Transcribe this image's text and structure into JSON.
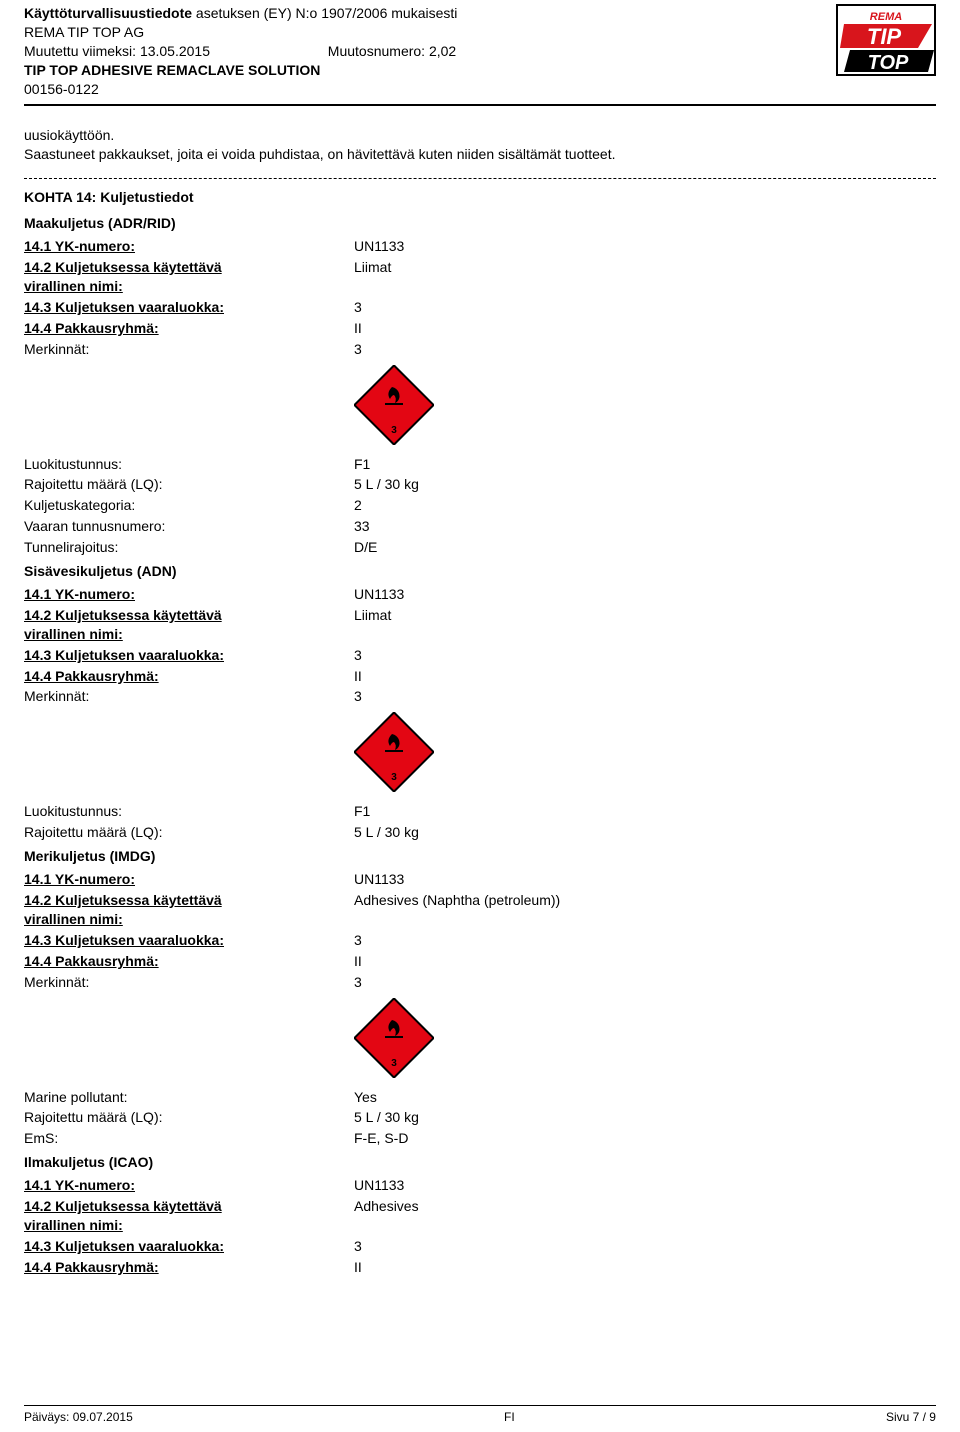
{
  "header": {
    "title_prefix_b": "Käyttöturvallisuustiedote",
    "title_suffix": " asetuksen (EY) N:o 1907/2006 mukaisesti",
    "company": "REMA TIP TOP AG",
    "modified_label": "Muutettu viimeksi: ",
    "modified_date": "13.05.2015",
    "revision_label": "Muutosnumero: ",
    "revision_no": "2,02",
    "product": "TIP TOP ADHESIVE REMACLAVE SOLUTION",
    "code": "00156-0122"
  },
  "intro": {
    "line1": "uusiokäyttöön.",
    "line2": "Saastuneet pakkaukset, joita ei voida puhdistaa, on hävitettävä kuten niiden sisältämät tuotteet."
  },
  "section14": {
    "title": "KOHTA 14: Kuljetustiedot",
    "adr": {
      "heading": "Maakuljetus (ADR/RID)",
      "items": [
        {
          "l": "14.1 YK-numero:",
          "v": "UN1133",
          "u": true,
          "b": true
        },
        {
          "l": "14.2 Kuljetuksessa käytettävä virallinen nimi:",
          "v": "Liimat",
          "u": true,
          "b": true,
          "twoline": true
        },
        {
          "l": "14.3 Kuljetuksen vaaraluokka:",
          "v": "3",
          "u": true,
          "b": true
        },
        {
          "l": "14.4 Pakkausryhmä:",
          "v": "II",
          "u": true,
          "b": true
        },
        {
          "l": "Merkinnät:",
          "v": "3"
        }
      ],
      "after": [
        {
          "l": "Luokitustunnus:",
          "v": "F1"
        },
        {
          "l": "Rajoitettu määrä (LQ):",
          "v": "5 L / 30 kg"
        },
        {
          "l": "Kuljetuskategoria:",
          "v": "2"
        },
        {
          "l": "Vaaran tunnusnumero:",
          "v": "33"
        },
        {
          "l": "Tunnelirajoitus:",
          "v": "D/E"
        }
      ]
    },
    "adn": {
      "heading": "Sisävesikuljetus (ADN)",
      "items": [
        {
          "l": "14.1 YK-numero:",
          "v": "UN1133",
          "u": true,
          "b": true
        },
        {
          "l": "14.2 Kuljetuksessa käytettävä virallinen nimi:",
          "v": "Liimat",
          "u": true,
          "b": true,
          "twoline": true
        },
        {
          "l": "14.3 Kuljetuksen vaaraluokka:",
          "v": "3",
          "u": true,
          "b": true
        },
        {
          "l": "14.4 Pakkausryhmä:",
          "v": "II",
          "u": true,
          "b": true
        },
        {
          "l": "Merkinnät:",
          "v": "3"
        }
      ],
      "after": [
        {
          "l": "Luokitustunnus:",
          "v": "F1"
        },
        {
          "l": "Rajoitettu määrä (LQ):",
          "v": "5 L / 30 kg"
        }
      ]
    },
    "imdg": {
      "heading": "Merikuljetus (IMDG)",
      "items": [
        {
          "l": "14.1 YK-numero:",
          "v": "UN1133",
          "u": true,
          "b": true
        },
        {
          "l": "14.2 Kuljetuksessa käytettävä virallinen nimi:",
          "v": "Adhesives (Naphtha (petroleum))",
          "u": true,
          "b": true,
          "twoline": true
        },
        {
          "l": "14.3 Kuljetuksen vaaraluokka:",
          "v": "3",
          "u": true,
          "b": true
        },
        {
          "l": "14.4 Pakkausryhmä:",
          "v": "II",
          "u": true,
          "b": true
        },
        {
          "l": "Merkinnät:",
          "v": "3"
        }
      ],
      "after": [
        {
          "l": "Marine pollutant:",
          "v": "Yes"
        },
        {
          "l": "Rajoitettu määrä (LQ):",
          "v": "5 L / 30 kg"
        },
        {
          "l": "EmS:",
          "v": "F-E, S-D"
        }
      ]
    },
    "icao": {
      "heading": "Ilmakuljetus (ICAO)",
      "items": [
        {
          "l": "14.1 YK-numero:",
          "v": "UN1133",
          "u": true,
          "b": true
        },
        {
          "l": "14.2 Kuljetuksessa käytettävä virallinen nimi:",
          "v": "Adhesives",
          "u": true,
          "b": true,
          "twoline": true
        },
        {
          "l": "14.3 Kuljetuksen vaaraluokka:",
          "v": "3",
          "u": true,
          "b": true
        },
        {
          "l": "14.4 Pakkausryhmä:",
          "v": "II",
          "u": true,
          "b": true
        }
      ]
    }
  },
  "hazard": {
    "bg_color": "#e30613",
    "border_color": "#000000",
    "flame_color": "#000000",
    "number": "3",
    "size": 80
  },
  "logo": {
    "top_text": "REMA",
    "mid_text": "TIP",
    "bot_text": "TOP",
    "red": "#d8151c",
    "border": "#000"
  },
  "footer": {
    "left_label": "Päiväys: ",
    "left_date": "09.07.2015",
    "center": "FI",
    "right": "Sivu 7 / 9"
  }
}
